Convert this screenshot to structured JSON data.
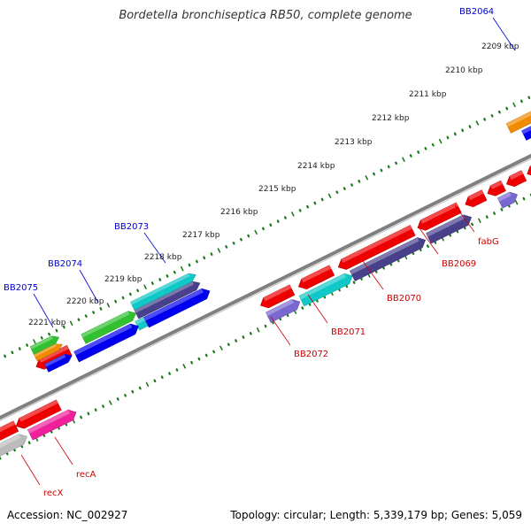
{
  "title": "Bordetella bronchiseptica RB50, complete genome",
  "footer": {
    "accession": "Accession: NC_002927",
    "summary": "Topology: circular; Length: 5,339,179 bp; Genes: 5,059"
  },
  "scale_labels": [
    "2209 kbp",
    "2210 kbp",
    "2211 kbp",
    "2212 kbp",
    "2213 kbp",
    "2214 kbp",
    "2215 kbp",
    "2216 kbp",
    "2217 kbp",
    "2218 kbp",
    "2219 kbp",
    "2220 kbp",
    "2221 kbp"
  ],
  "gene_labels": {
    "outer": [
      "BB2064",
      "BB2073",
      "BB2074",
      "BB2075"
    ],
    "inner": [
      "fabG",
      "BB2069",
      "BB2070",
      "BB2071",
      "BB2072",
      "recA",
      "recX"
    ]
  },
  "colors": {
    "label_outer": "#0000cc",
    "label_inner": "#cc0000",
    "tick": "#1a7a1a",
    "backbone": "#808080",
    "red": "#ee0000",
    "blue": "#0000ee",
    "dark_slate": "#48408a",
    "slate": "#7868d0",
    "cyan": "#10c8c8",
    "green": "#30c030",
    "orange": "#f08c00",
    "pink": "#f0209a",
    "gray": "#bbbbbb"
  }
}
